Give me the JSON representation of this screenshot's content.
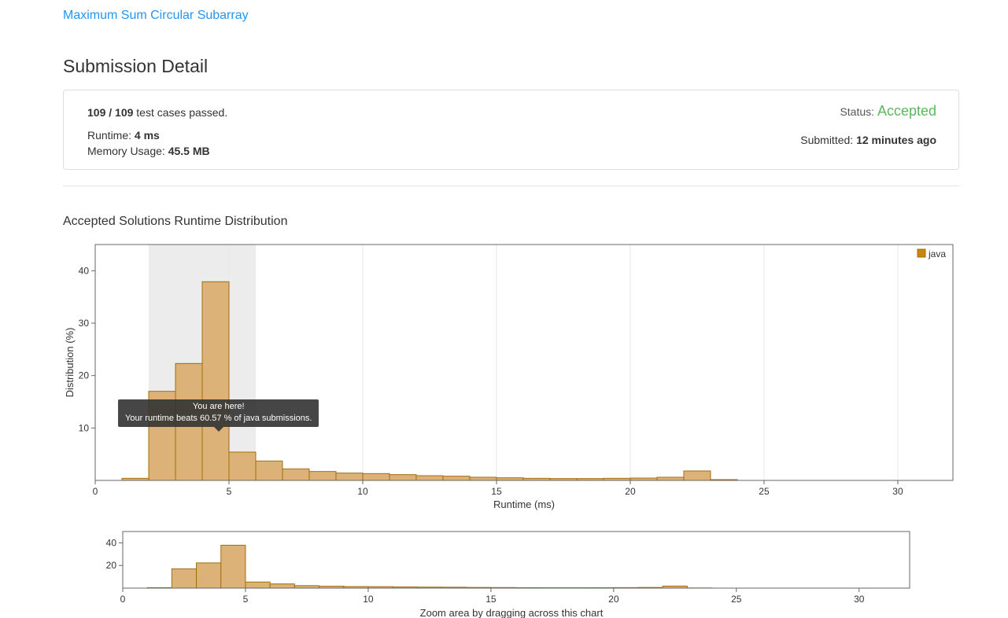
{
  "page": {
    "problem_link": "Maximum Sum Circular Subarray",
    "title": "Submission Detail"
  },
  "summary": {
    "tests_passed_bold": "109 / 109",
    "tests_passed_rest": " test cases passed.",
    "runtime_label": "Runtime:",
    "runtime_value": "4 ms",
    "memory_label": "Memory Usage:",
    "memory_value": "45.5 MB",
    "status_label": "Status:",
    "status_value": "Accepted",
    "submitted_label": "Submitted:",
    "submitted_value": "12 minutes ago"
  },
  "chart_section": {
    "heading": "Accepted Solutions Runtime Distribution",
    "zoom_hint": "Zoom area by dragging across this chart"
  },
  "colors": {
    "link_blue": "#2196f3",
    "status_green": "#5cb85c"
  },
  "chart_data": {
    "type": "bar",
    "title": "Accepted Solutions Runtime Distribution",
    "xlabel": "Runtime (ms)",
    "ylabel": "Distribution (%)",
    "legend": [
      "java"
    ],
    "legend_position": "top-right",
    "xlim": [
      0,
      32.06
    ],
    "x_ticks": [
      0,
      5,
      10,
      15,
      20,
      25,
      30
    ],
    "main_ylim": [
      0,
      45
    ],
    "main_y_ticks": [
      10,
      20,
      30,
      40
    ],
    "overview_ylim": [
      0,
      50
    ],
    "overview_y_ticks": [
      20,
      40
    ],
    "bin_width_ms": 1,
    "bins": [
      1,
      2,
      3,
      4,
      5,
      6,
      7,
      8,
      9,
      10,
      11,
      12,
      13,
      14,
      15,
      16,
      17,
      18,
      19,
      20,
      21,
      22,
      23
    ],
    "values": [
      0.4,
      17.0,
      22.3,
      37.9,
      5.4,
      3.7,
      2.2,
      1.7,
      1.4,
      1.3,
      1.1,
      0.9,
      0.8,
      0.6,
      0.5,
      0.4,
      0.35,
      0.35,
      0.4,
      0.45,
      0.6,
      1.8,
      0.15
    ],
    "highlight_range": [
      2,
      6
    ],
    "tooltip": {
      "line1": "You are here!",
      "line2": "Your runtime beats 60.57 % of java submissions.",
      "x": 4.6
    },
    "colors": {
      "bar_fill": "#dcb278",
      "bar_stroke": "#a36d0e",
      "legend_fill": "#c8860b",
      "highlight": "#dcdcdc",
      "tooltip_bg": "rgba(50,50,50,0.9)"
    }
  }
}
